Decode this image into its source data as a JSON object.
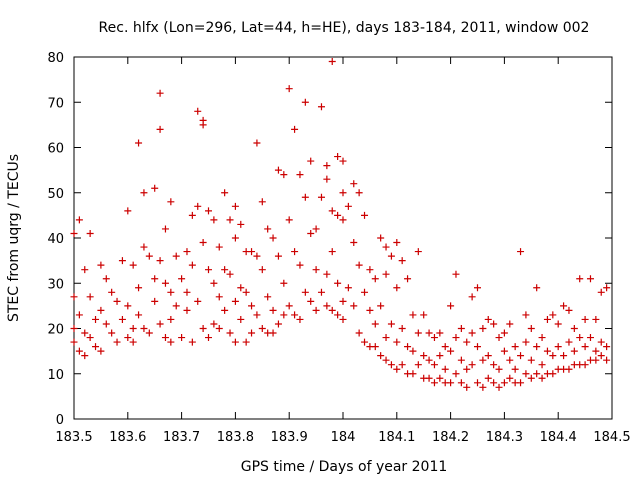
{
  "chart_data": {
    "type": "scatter",
    "title": "Rec. hlfx (Lon=296, Lat=44, h=HE), days 183-184, 2011, window 002",
    "xlabel": "GPS time / Days of year 2011",
    "ylabel": "STEC from uqrg / TECUs",
    "xlim": [
      183.5,
      184.5
    ],
    "ylim": [
      0,
      80
    ],
    "x_ticks": [
      183.5,
      183.6,
      183.7,
      183.8,
      183.9,
      184.0,
      184.1,
      184.2,
      184.3,
      184.4,
      184.5
    ],
    "x_tick_labels": [
      "183.5",
      "183.6",
      "183.7",
      "183.8",
      "183.9",
      "184",
      "184.1",
      "184.2",
      "184.3",
      "184.4",
      "184.5"
    ],
    "y_ticks": [
      0,
      10,
      20,
      30,
      40,
      50,
      60,
      70,
      80
    ],
    "y_tick_labels": [
      "0",
      "10",
      "20",
      "30",
      "40",
      "50",
      "60",
      "70",
      "80"
    ],
    "marker": "+",
    "marker_color": "#cc0000",
    "grid": false,
    "series": [
      {
        "name": "STEC",
        "points": [
          [
            183.5,
            41
          ],
          [
            183.5,
            27
          ],
          [
            183.5,
            20
          ],
          [
            183.5,
            17
          ],
          [
            183.51,
            44
          ],
          [
            183.51,
            23
          ],
          [
            183.51,
            15
          ],
          [
            183.52,
            33
          ],
          [
            183.52,
            19
          ],
          [
            183.52,
            14
          ],
          [
            183.53,
            41
          ],
          [
            183.53,
            27
          ],
          [
            183.53,
            18
          ],
          [
            183.54,
            22
          ],
          [
            183.54,
            16
          ],
          [
            183.55,
            34
          ],
          [
            183.55,
            24
          ],
          [
            183.55,
            15
          ],
          [
            183.56,
            31
          ],
          [
            183.56,
            21
          ],
          [
            183.57,
            28
          ],
          [
            183.57,
            19
          ],
          [
            183.58,
            26
          ],
          [
            183.58,
            17
          ],
          [
            183.59,
            35
          ],
          [
            183.59,
            22
          ],
          [
            183.6,
            46
          ],
          [
            183.6,
            25
          ],
          [
            183.6,
            18
          ],
          [
            183.61,
            34
          ],
          [
            183.61,
            20
          ],
          [
            183.61,
            17
          ],
          [
            183.62,
            61
          ],
          [
            183.62,
            29
          ],
          [
            183.62,
            23
          ],
          [
            183.63,
            38
          ],
          [
            183.63,
            50
          ],
          [
            183.63,
            20
          ],
          [
            183.64,
            36
          ],
          [
            183.64,
            19
          ],
          [
            183.65,
            51
          ],
          [
            183.65,
            31
          ],
          [
            183.65,
            26
          ],
          [
            183.66,
            72
          ],
          [
            183.66,
            64
          ],
          [
            183.66,
            35
          ],
          [
            183.66,
            21
          ],
          [
            183.67,
            42
          ],
          [
            183.67,
            30
          ],
          [
            183.67,
            18
          ],
          [
            183.68,
            48
          ],
          [
            183.68,
            28
          ],
          [
            183.68,
            22
          ],
          [
            183.68,
            17
          ],
          [
            183.69,
            36
          ],
          [
            183.69,
            25
          ],
          [
            183.7,
            31
          ],
          [
            183.7,
            18
          ],
          [
            183.71,
            37
          ],
          [
            183.71,
            28
          ],
          [
            183.71,
            24
          ],
          [
            183.72,
            45
          ],
          [
            183.72,
            34
          ],
          [
            183.72,
            17
          ],
          [
            183.73,
            68
          ],
          [
            183.73,
            47
          ],
          [
            183.73,
            26
          ],
          [
            183.74,
            66
          ],
          [
            183.74,
            65
          ],
          [
            183.74,
            39
          ],
          [
            183.74,
            20
          ],
          [
            183.75,
            46
          ],
          [
            183.75,
            33
          ],
          [
            183.75,
            18
          ],
          [
            183.76,
            44
          ],
          [
            183.76,
            30
          ],
          [
            183.76,
            21
          ],
          [
            183.77,
            38
          ],
          [
            183.77,
            27
          ],
          [
            183.77,
            20
          ],
          [
            183.78,
            50
          ],
          [
            183.78,
            33
          ],
          [
            183.78,
            24
          ],
          [
            183.79,
            44
          ],
          [
            183.79,
            32
          ],
          [
            183.79,
            19
          ],
          [
            183.8,
            47
          ],
          [
            183.8,
            40
          ],
          [
            183.8,
            26
          ],
          [
            183.8,
            17
          ],
          [
            183.81,
            43
          ],
          [
            183.81,
            29
          ],
          [
            183.81,
            22
          ],
          [
            183.82,
            37
          ],
          [
            183.82,
            28
          ],
          [
            183.82,
            17
          ],
          [
            183.83,
            37
          ],
          [
            183.83,
            25
          ],
          [
            183.83,
            19
          ],
          [
            183.84,
            61
          ],
          [
            183.84,
            36
          ],
          [
            183.84,
            23
          ],
          [
            183.85,
            48
          ],
          [
            183.85,
            33
          ],
          [
            183.85,
            20
          ],
          [
            183.86,
            42
          ],
          [
            183.86,
            27
          ],
          [
            183.86,
            19
          ],
          [
            183.87,
            40
          ],
          [
            183.87,
            24
          ],
          [
            183.87,
            19
          ],
          [
            183.88,
            55
          ],
          [
            183.88,
            36
          ],
          [
            183.88,
            21
          ],
          [
            183.89,
            54
          ],
          [
            183.89,
            30
          ],
          [
            183.89,
            23
          ],
          [
            183.9,
            73
          ],
          [
            183.9,
            44
          ],
          [
            183.9,
            25
          ],
          [
            183.91,
            64
          ],
          [
            183.91,
            37
          ],
          [
            183.91,
            23
          ],
          [
            183.92,
            54
          ],
          [
            183.92,
            34
          ],
          [
            183.92,
            22
          ],
          [
            183.93,
            70
          ],
          [
            183.93,
            49
          ],
          [
            183.93,
            28
          ],
          [
            183.94,
            57
          ],
          [
            183.94,
            41
          ],
          [
            183.94,
            26
          ],
          [
            183.95,
            42
          ],
          [
            183.95,
            33
          ],
          [
            183.95,
            24
          ],
          [
            183.96,
            69
          ],
          [
            183.96,
            49
          ],
          [
            183.96,
            28
          ],
          [
            183.97,
            56
          ],
          [
            183.97,
            53
          ],
          [
            183.97,
            32
          ],
          [
            183.97,
            25
          ],
          [
            183.98,
            79
          ],
          [
            183.98,
            46
          ],
          [
            183.98,
            37
          ],
          [
            183.98,
            24
          ],
          [
            183.99,
            58
          ],
          [
            183.99,
            45
          ],
          [
            183.99,
            30
          ],
          [
            183.99,
            23
          ],
          [
            184.0,
            57
          ],
          [
            184.0,
            50
          ],
          [
            184.0,
            44
          ],
          [
            184.0,
            26
          ],
          [
            184.0,
            22
          ],
          [
            184.01,
            47
          ],
          [
            184.01,
            29
          ],
          [
            184.02,
            52
          ],
          [
            184.02,
            39
          ],
          [
            184.02,
            25
          ],
          [
            184.03,
            50
          ],
          [
            184.03,
            34
          ],
          [
            184.03,
            19
          ],
          [
            184.04,
            45
          ],
          [
            184.04,
            28
          ],
          [
            184.04,
            17
          ],
          [
            184.05,
            33
          ],
          [
            184.05,
            24
          ],
          [
            184.05,
            16
          ],
          [
            184.06,
            31
          ],
          [
            184.06,
            21
          ],
          [
            184.06,
            16
          ],
          [
            184.07,
            40
          ],
          [
            184.07,
            25
          ],
          [
            184.07,
            14
          ],
          [
            184.08,
            38
          ],
          [
            184.08,
            32
          ],
          [
            184.08,
            18
          ],
          [
            184.08,
            13
          ],
          [
            184.09,
            36
          ],
          [
            184.09,
            21
          ],
          [
            184.09,
            12
          ],
          [
            184.1,
            39
          ],
          [
            184.1,
            29
          ],
          [
            184.1,
            17
          ],
          [
            184.1,
            11
          ],
          [
            184.11,
            35
          ],
          [
            184.11,
            20
          ],
          [
            184.11,
            12
          ],
          [
            184.12,
            31
          ],
          [
            184.12,
            16
          ],
          [
            184.12,
            10
          ],
          [
            184.13,
            23
          ],
          [
            184.13,
            15
          ],
          [
            184.13,
            10
          ],
          [
            184.14,
            37
          ],
          [
            184.14,
            19
          ],
          [
            184.14,
            12
          ],
          [
            184.15,
            23
          ],
          [
            184.15,
            14
          ],
          [
            184.15,
            9
          ],
          [
            184.16,
            19
          ],
          [
            184.16,
            13
          ],
          [
            184.16,
            9
          ],
          [
            184.17,
            18
          ],
          [
            184.17,
            12
          ],
          [
            184.17,
            8
          ],
          [
            184.18,
            19
          ],
          [
            184.18,
            14
          ],
          [
            184.18,
            9
          ],
          [
            184.19,
            16
          ],
          [
            184.19,
            11
          ],
          [
            184.19,
            8
          ],
          [
            184.2,
            25
          ],
          [
            184.2,
            15
          ],
          [
            184.2,
            8
          ],
          [
            184.21,
            32
          ],
          [
            184.21,
            18
          ],
          [
            184.21,
            10
          ],
          [
            184.22,
            20
          ],
          [
            184.22,
            13
          ],
          [
            184.22,
            8
          ],
          [
            184.23,
            17
          ],
          [
            184.23,
            11
          ],
          [
            184.23,
            7
          ],
          [
            184.24,
            27
          ],
          [
            184.24,
            19
          ],
          [
            184.24,
            12
          ],
          [
            184.25,
            29
          ],
          [
            184.25,
            16
          ],
          [
            184.25,
            8
          ],
          [
            184.26,
            20
          ],
          [
            184.26,
            13
          ],
          [
            184.26,
            7
          ],
          [
            184.27,
            22
          ],
          [
            184.27,
            14
          ],
          [
            184.27,
            9
          ],
          [
            184.28,
            21
          ],
          [
            184.28,
            12
          ],
          [
            184.28,
            8
          ],
          [
            184.29,
            18
          ],
          [
            184.29,
            11
          ],
          [
            184.29,
            7
          ],
          [
            184.3,
            19
          ],
          [
            184.3,
            15
          ],
          [
            184.3,
            8
          ],
          [
            184.31,
            21
          ],
          [
            184.31,
            13
          ],
          [
            184.31,
            9
          ],
          [
            184.32,
            16
          ],
          [
            184.32,
            11
          ],
          [
            184.32,
            8
          ],
          [
            184.33,
            37
          ],
          [
            184.33,
            14
          ],
          [
            184.33,
            8
          ],
          [
            184.34,
            23
          ],
          [
            184.34,
            17
          ],
          [
            184.34,
            10
          ],
          [
            184.35,
            20
          ],
          [
            184.35,
            13
          ],
          [
            184.35,
            9
          ],
          [
            184.36,
            29
          ],
          [
            184.36,
            16
          ],
          [
            184.36,
            10
          ],
          [
            184.37,
            18
          ],
          [
            184.37,
            12
          ],
          [
            184.37,
            9
          ],
          [
            184.38,
            22
          ],
          [
            184.38,
            15
          ],
          [
            184.38,
            10
          ],
          [
            184.39,
            23
          ],
          [
            184.39,
            14
          ],
          [
            184.39,
            10
          ],
          [
            184.4,
            21
          ],
          [
            184.4,
            16
          ],
          [
            184.4,
            11
          ],
          [
            184.41,
            25
          ],
          [
            184.41,
            14
          ],
          [
            184.41,
            11
          ],
          [
            184.42,
            24
          ],
          [
            184.42,
            17
          ],
          [
            184.42,
            11
          ],
          [
            184.43,
            20
          ],
          [
            184.43,
            15
          ],
          [
            184.43,
            12
          ],
          [
            184.44,
            31
          ],
          [
            184.44,
            18
          ],
          [
            184.44,
            12
          ],
          [
            184.45,
            22
          ],
          [
            184.45,
            16
          ],
          [
            184.45,
            12
          ],
          [
            184.46,
            31
          ],
          [
            184.46,
            18
          ],
          [
            184.46,
            13
          ],
          [
            184.47,
            22
          ],
          [
            184.47,
            15
          ],
          [
            184.47,
            13
          ],
          [
            184.48,
            28
          ],
          [
            184.48,
            17
          ],
          [
            184.48,
            14
          ],
          [
            184.49,
            29
          ],
          [
            184.49,
            16
          ],
          [
            184.49,
            13
          ]
        ]
      }
    ]
  }
}
